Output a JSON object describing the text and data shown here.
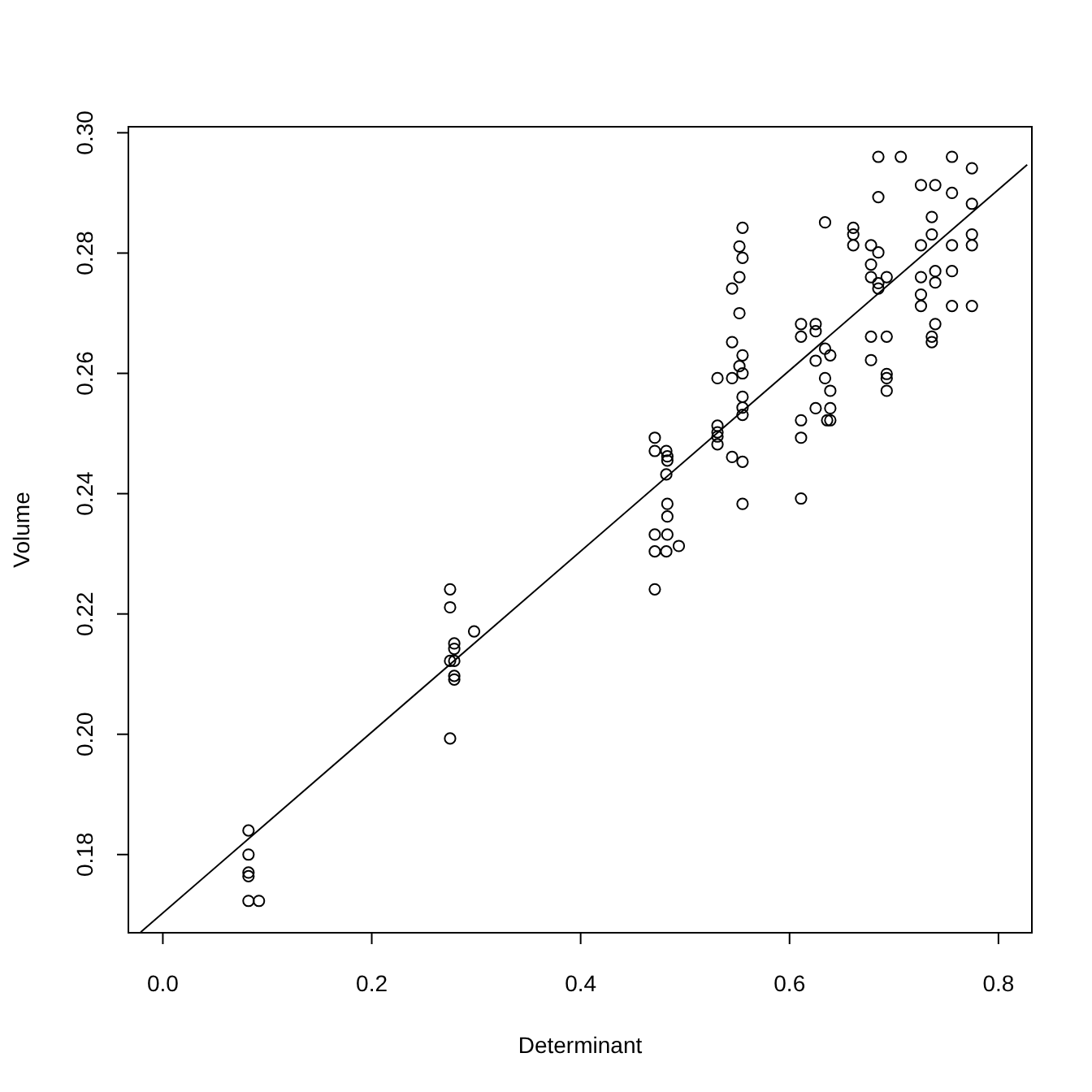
{
  "chart_data": {
    "type": "scatter",
    "xlabel": "Determinant",
    "ylabel": "Volume",
    "xlim": [
      -0.033,
      0.832
    ],
    "ylim": [
      0.167,
      0.301
    ],
    "xticks": [
      {
        "value": 0,
        "label": "0.0"
      },
      0.2,
      0.4,
      0.6,
      0.8
    ],
    "yticks": [
      0.18,
      {
        "value": 0.2,
        "label": "0.20"
      },
      0.22,
      0.24,
      0.26,
      0.28,
      {
        "value": 0.3,
        "label": "0.30"
      }
    ],
    "marker": "circle",
    "grid": false,
    "series": [
      {
        "color": "#000000",
        "x": [
          0.082,
          0.082,
          0.082,
          0.082,
          0.082,
          0.092,
          0.275,
          0.275,
          0.298,
          0.279,
          0.279,
          0.275,
          0.279,
          0.279,
          0.279,
          0.275,
          0.471,
          0.471,
          0.482,
          0.483,
          0.483,
          0.482,
          0.483,
          0.483,
          0.471,
          0.483,
          0.471,
          0.482,
          0.494,
          0.471,
          0.531,
          0.531,
          0.531,
          0.531,
          0.545,
          0.555,
          0.555,
          0.555,
          0.552,
          0.555,
          0.552,
          0.545,
          0.552,
          0.545,
          0.555,
          0.552,
          0.555,
          0.531,
          0.545,
          0.555,
          0.555,
          0.555,
          0.634,
          0.611,
          0.625,
          0.611,
          0.625,
          0.634,
          0.639,
          0.625,
          0.634,
          0.639,
          0.625,
          0.639,
          0.611,
          0.636,
          0.639,
          0.611,
          0.611,
          0.685,
          0.7065,
          0.685,
          0.661,
          0.661,
          0.661,
          0.678,
          0.685,
          0.678,
          0.678,
          0.693,
          0.685,
          0.685,
          0.678,
          0.693,
          0.678,
          0.693,
          0.693,
          0.693,
          0.7555,
          0.7746,
          0.7258,
          0.7395,
          0.7555,
          0.7746,
          0.7362,
          0.7362,
          0.7746,
          0.7258,
          0.7555,
          0.7746,
          0.7258,
          0.7395,
          0.7395,
          0.7555,
          0.7258,
          0.7258,
          0.7555,
          0.7746,
          0.7395,
          0.7362,
          0.7362
        ],
        "values": [
          0.184,
          0.18,
          0.177,
          0.1764,
          0.1723,
          0.1723,
          0.2241,
          0.2211,
          0.2171,
          0.2151,
          0.2142,
          0.2122,
          0.2122,
          0.2097,
          0.2091,
          0.1993,
          0.2493,
          0.2471,
          0.2471,
          0.2462,
          0.2455,
          0.2432,
          0.2383,
          0.2362,
          0.2332,
          0.2332,
          0.2304,
          0.2304,
          0.2313,
          0.2241,
          0.2513,
          0.2502,
          0.2495,
          0.2482,
          0.2461,
          0.2453,
          0.2383,
          0.2842,
          0.2811,
          0.2792,
          0.276,
          0.2741,
          0.27,
          0.2652,
          0.263,
          0.2612,
          0.26,
          0.2592,
          0.2592,
          0.2561,
          0.2543,
          0.2531,
          0.2851,
          0.2682,
          0.2682,
          0.2661,
          0.267,
          0.2641,
          0.263,
          0.2621,
          0.2592,
          0.2571,
          0.2542,
          0.2542,
          0.2522,
          0.2522,
          0.2522,
          0.2493,
          0.2392,
          0.296,
          0.296,
          0.2893,
          0.2842,
          0.2831,
          0.2813,
          0.2813,
          0.2801,
          0.2781,
          0.276,
          0.276,
          0.275,
          0.2741,
          0.2661,
          0.2661,
          0.2622,
          0.2599,
          0.2592,
          0.2571,
          0.296,
          0.2941,
          0.2913,
          0.2913,
          0.29,
          0.2882,
          0.286,
          0.2831,
          0.2831,
          0.2813,
          0.2813,
          0.2813,
          0.276,
          0.277,
          0.2751,
          0.277,
          0.2731,
          0.2712,
          0.2712,
          0.2712,
          0.2682,
          0.2661,
          0.2652
        ]
      },
      {
        "type": "line",
        "color": "#000000",
        "marker": "none",
        "x": [
          -0.0212,
          0.8275
        ],
        "values": [
          0.1671,
          0.2947
        ]
      }
    ]
  }
}
